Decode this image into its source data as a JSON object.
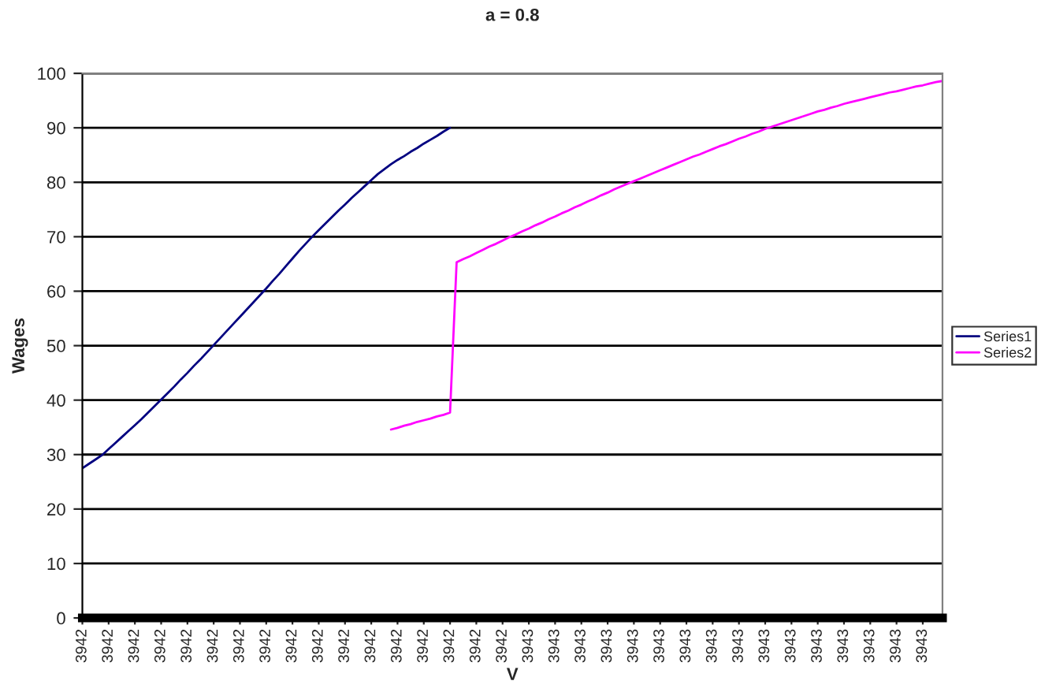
{
  "chart_data": {
    "type": "line",
    "title": "a = 0.8",
    "xlabel": "V",
    "ylabel": "Wages",
    "categories": [
      "3942",
      null,
      null,
      null,
      "3942",
      null,
      null,
      null,
      "3942",
      null,
      null,
      null,
      "3942",
      null,
      null,
      null,
      "3942",
      null,
      null,
      null,
      "3942",
      null,
      null,
      null,
      "3942",
      null,
      null,
      null,
      "3942",
      null,
      null,
      null,
      "3942",
      null,
      null,
      null,
      "3942",
      null,
      null,
      null,
      "3942",
      null,
      null,
      null,
      "3942",
      null,
      null,
      null,
      "3942",
      null,
      null,
      null,
      "3942",
      null,
      null,
      null,
      "3942",
      null,
      null,
      null,
      "3942",
      null,
      null,
      null,
      "3942",
      null,
      null,
      null,
      "3943",
      null,
      null,
      null,
      "3943",
      null,
      null,
      null,
      "3943",
      null,
      null,
      null,
      "3943",
      null,
      null,
      null,
      "3943",
      null,
      null,
      null,
      "3943",
      null,
      null,
      null,
      "3943",
      null,
      null,
      null,
      "3943",
      null,
      null,
      null,
      "3943",
      null,
      null,
      null,
      "3943",
      null,
      null,
      null,
      "3943",
      null,
      null,
      null,
      "3943",
      null,
      null,
      null,
      "3943",
      null,
      null,
      null,
      "3943",
      null,
      null,
      null,
      "3943",
      null,
      null,
      null,
      "3943",
      null,
      null,
      null
    ],
    "series": [
      {
        "name": "Series1",
        "color": "#000080",
        "values": [
          27.5,
          28.3,
          29.1,
          29.9,
          31,
          32.1,
          33.2,
          34.3,
          35.4,
          36.5,
          37.7,
          38.9,
          40.1,
          41.3,
          42.5,
          43.8,
          45,
          46.3,
          47.5,
          48.8,
          50.1,
          51.4,
          52.7,
          54,
          55.3,
          56.6,
          57.9,
          59.2,
          60.5,
          61.9,
          63.2,
          64.6,
          66,
          67.4,
          68.7,
          70,
          71.2,
          72.4,
          73.6,
          74.8,
          75.9,
          77.1,
          78.2,
          79.3,
          80.4,
          81.5,
          82.4,
          83.3,
          84.1,
          84.8,
          85.6,
          86.3,
          87.1,
          87.8,
          88.5,
          89.3,
          90,
          null,
          null,
          null,
          null,
          null,
          null,
          null,
          null,
          null,
          null,
          null,
          null,
          null,
          null,
          null,
          null,
          null,
          null,
          null,
          null,
          null,
          null,
          null,
          null,
          null,
          null,
          null,
          null,
          null,
          null,
          null,
          null,
          null,
          null,
          null,
          null,
          null,
          null,
          null,
          null,
          null,
          null,
          null,
          null,
          null,
          null,
          null,
          null,
          null,
          null,
          null,
          null,
          null,
          null,
          null,
          null,
          null,
          null,
          null,
          null,
          null,
          null,
          null,
          null,
          null,
          null,
          null,
          null,
          null,
          null,
          null,
          null,
          null,
          null,
          null
        ]
      },
      {
        "name": "Series2",
        "color": "#ff00ff",
        "values": [
          null,
          null,
          null,
          null,
          null,
          null,
          null,
          null,
          null,
          null,
          null,
          null,
          null,
          null,
          null,
          null,
          null,
          null,
          null,
          null,
          null,
          null,
          null,
          null,
          null,
          null,
          null,
          null,
          null,
          null,
          null,
          null,
          null,
          null,
          null,
          null,
          null,
          null,
          null,
          null,
          null,
          null,
          null,
          null,
          null,
          null,
          null,
          34.6,
          34.9,
          35.3,
          35.6,
          36,
          36.3,
          36.6,
          37,
          37.3,
          37.7,
          65.3,
          65.9,
          66.4,
          67,
          67.6,
          68.2,
          68.7,
          69.3,
          69.9,
          70.4,
          71,
          71.5,
          72.1,
          72.6,
          73.2,
          73.7,
          74.3,
          74.8,
          75.4,
          75.9,
          76.5,
          77,
          77.6,
          78.1,
          78.7,
          79.2,
          79.7,
          80.2,
          80.7,
          81.2,
          81.7,
          82.2,
          82.7,
          83.2,
          83.7,
          84.2,
          84.7,
          85.1,
          85.6,
          86.1,
          86.6,
          87,
          87.5,
          88,
          88.4,
          88.9,
          89.3,
          89.8,
          90.2,
          90.6,
          91,
          91.4,
          91.8,
          92.2,
          92.6,
          93,
          93.3,
          93.7,
          94,
          94.4,
          94.7,
          95,
          95.3,
          95.6,
          95.9,
          96.2,
          96.5,
          96.7,
          97,
          97.3,
          97.6,
          97.8,
          98.1,
          98.4,
          98.6
        ]
      }
    ],
    "ylim": [
      0,
      100
    ],
    "yticks": [
      0,
      10,
      20,
      30,
      40,
      50,
      60,
      70,
      80,
      90,
      100
    ],
    "grid": "y",
    "legend": "right"
  }
}
